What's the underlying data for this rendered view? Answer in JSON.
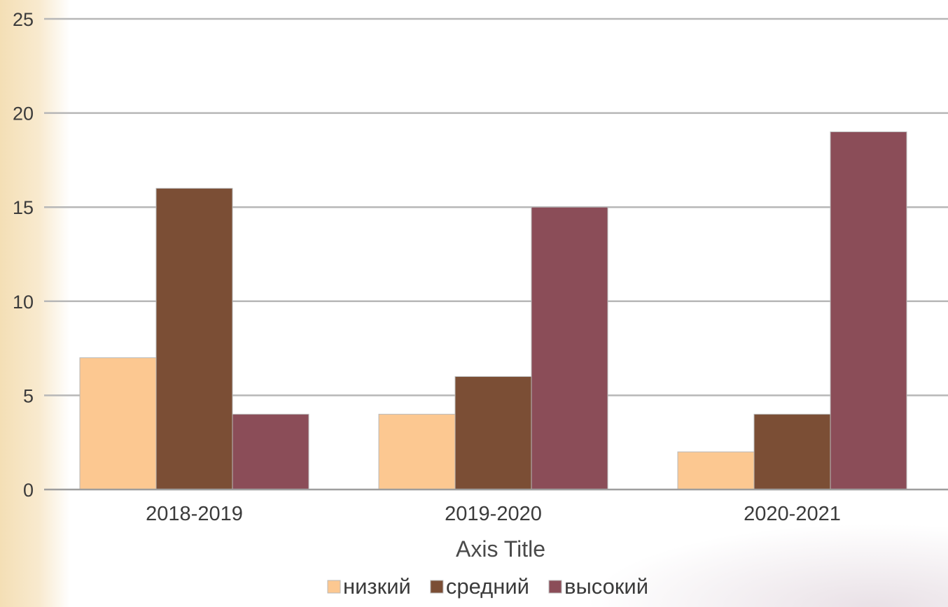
{
  "chart_data": {
    "type": "bar",
    "categories": [
      "2018-2019",
      "2019-2020",
      "2020-2021"
    ],
    "series": [
      {
        "name": "низкий",
        "values": [
          7,
          4,
          2
        ],
        "color": "#fcc891"
      },
      {
        "name": "средний",
        "values": [
          16,
          6,
          4
        ],
        "color": "#7b4e35"
      },
      {
        "name": "высокий",
        "values": [
          4,
          15,
          19
        ],
        "color": "#8b4d58"
      }
    ],
    "xlabel": "Axis Title",
    "ylabel": "",
    "ylim": [
      0,
      25
    ],
    "yticks": [
      0,
      5,
      10,
      15,
      20,
      25
    ],
    "grid": true,
    "legend_position": "bottom"
  }
}
